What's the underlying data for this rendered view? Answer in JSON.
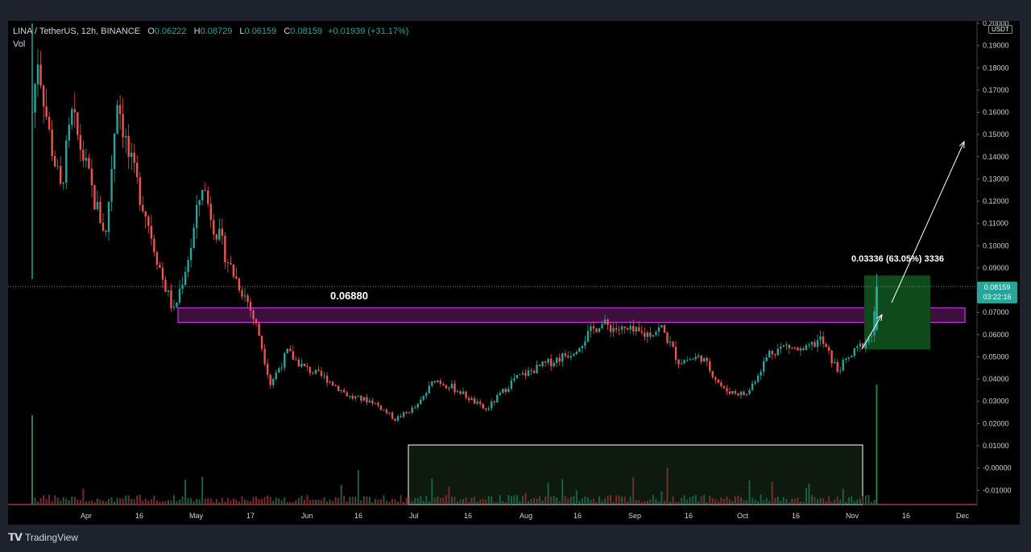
{
  "legend": {
    "symbol": "LINA / TetherUS, 12h, BINANCE",
    "o_label": "O",
    "o_value": "0.06222",
    "h_label": "H",
    "h_value": "0.08729",
    "l_label": "L",
    "l_value": "0.06159",
    "c_label": "C",
    "c_value": "0.08159",
    "change": "+0.01939 (+31.17%)",
    "volume_label": "Vol"
  },
  "price_axis": {
    "unit": "USDT",
    "ticks": [
      "0.20000",
      "0.19000",
      "0.18000",
      "0.17000",
      "0.16000",
      "0.15000",
      "0.14000",
      "0.13000",
      "0.12000",
      "0.11000",
      "0.10000",
      "0.09000",
      "0.08000",
      "0.07000",
      "0.06000",
      "0.05000",
      "0.04000",
      "0.03000",
      "0.02000",
      "0.01000",
      "-0.00000",
      "-0.01000"
    ],
    "last_price": "0.08159",
    "countdown": "03:22:16"
  },
  "time_axis": {
    "ticks": [
      "Apr",
      "16",
      "May",
      "17",
      "Jun",
      "16",
      "Jul",
      "16",
      "Aug",
      "16",
      "Sep",
      "16",
      "Oct",
      "16",
      "Nov",
      "16",
      "Dec"
    ]
  },
  "annotations": {
    "level_label": "0.06880",
    "measure_label": "0.03336 (63.05%) 3336"
  },
  "colors": {
    "up": "#26a69a",
    "down": "#ef5350",
    "zone_border": "#e040fb",
    "zone_fill": "#3c0f3f",
    "measure_fill": "#0f4a1a",
    "volume_box_border": "#ffffff",
    "last_price": "#26a69a"
  },
  "footer": {
    "brand": "TradingView",
    "logo_icon": "tradingview-logo-icon"
  },
  "chart_data": {
    "type": "candlestick",
    "x_start": "2021-03-25",
    "interval": "12h",
    "y_range": [
      -0.012,
      0.2
    ],
    "last": {
      "open": 0.06222,
      "high": 0.08729,
      "low": 0.06159,
      "close": 0.08159
    },
    "horizontal_level": 0.0688,
    "zone": {
      "from": 0.0655,
      "to": 0.072
    },
    "measure": {
      "from_price": 0.0533,
      "to_price": 0.0866,
      "change": "0.03336 (63.05%) 3336"
    },
    "price_path": [
      [
        0,
        0.16
      ],
      [
        2,
        0.185
      ],
      [
        6,
        0.15
      ],
      [
        10,
        0.125
      ],
      [
        14,
        0.158
      ],
      [
        18,
        0.14
      ],
      [
        22,
        0.12
      ],
      [
        26,
        0.105
      ],
      [
        30,
        0.168
      ],
      [
        34,
        0.14
      ],
      [
        40,
        0.115
      ],
      [
        46,
        0.085
      ],
      [
        50,
        0.07
      ],
      [
        56,
        0.1
      ],
      [
        60,
        0.128
      ],
      [
        64,
        0.11
      ],
      [
        70,
        0.09
      ],
      [
        76,
        0.075
      ],
      [
        80,
        0.06
      ],
      [
        84,
        0.038
      ],
      [
        90,
        0.052
      ],
      [
        96,
        0.045
      ],
      [
        104,
        0.04
      ],
      [
        112,
        0.032
      ],
      [
        120,
        0.03
      ],
      [
        128,
        0.022
      ],
      [
        136,
        0.028
      ],
      [
        142,
        0.04
      ],
      [
        150,
        0.035
      ],
      [
        160,
        0.026
      ],
      [
        170,
        0.04
      ],
      [
        180,
        0.046
      ],
      [
        190,
        0.052
      ],
      [
        200,
        0.065
      ],
      [
        208,
        0.062
      ],
      [
        216,
        0.06
      ],
      [
        222,
        0.063
      ],
      [
        228,
        0.048
      ],
      [
        236,
        0.05
      ],
      [
        244,
        0.035
      ],
      [
        252,
        0.033
      ],
      [
        260,
        0.052
      ],
      [
        266,
        0.055
      ],
      [
        272,
        0.052
      ],
      [
        278,
        0.058
      ],
      [
        284,
        0.044
      ],
      [
        290,
        0.052
      ],
      [
        296,
        0.06
      ],
      [
        298,
        0.0816
      ]
    ]
  }
}
